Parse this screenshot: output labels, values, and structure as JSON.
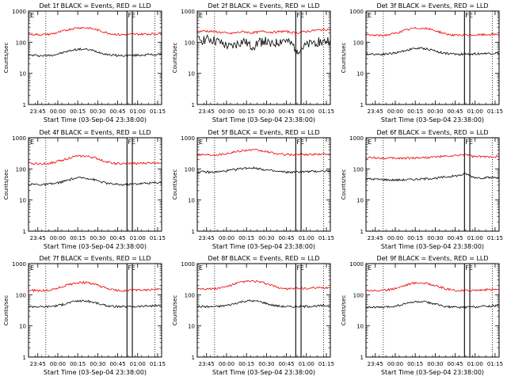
{
  "colors": {
    "events": "#000000",
    "lld": "#ee0000",
    "axes": "#000000",
    "background": "#ffffff"
  },
  "shared": {
    "ylabel": "Counts/sec",
    "xlabel": "Start Time (03-Sep-04 23:38:00)",
    "xticks": [
      "23:45",
      "00:00",
      "00:15",
      "00:30",
      "00:45",
      "01:00",
      "01:15"
    ],
    "yticks": [
      "1",
      "10",
      "100",
      "1000"
    ],
    "marker_E": "E",
    "marker_FE": "FE"
  },
  "chart_data": [
    {
      "type": "line",
      "title": "Det 1f BLACK = Events, RED = LLD",
      "yscale": "log",
      "ylim": [
        1,
        1000
      ],
      "xlim_minutes": [
        0,
        100
      ],
      "x_ticks_minutes": [
        7,
        22,
        37,
        52,
        67,
        82,
        97
      ],
      "dotted_lines_minutes": [
        13,
        95
      ],
      "solid_lines_minutes": [
        74,
        78
      ],
      "series": [
        {
          "name": "Events",
          "color": "black",
          "x": [
            0,
            5,
            10,
            15,
            20,
            25,
            30,
            35,
            40,
            45,
            50,
            55,
            60,
            65,
            70,
            75,
            80,
            85,
            90,
            95,
            100
          ],
          "values": [
            38,
            38,
            37,
            38,
            40,
            45,
            52,
            58,
            60,
            58,
            52,
            45,
            40,
            38,
            37,
            38,
            38,
            39,
            40,
            40,
            41
          ]
        },
        {
          "name": "LLD",
          "color": "red",
          "x": [
            0,
            5,
            10,
            15,
            20,
            25,
            30,
            35,
            40,
            45,
            50,
            55,
            60,
            65,
            70,
            75,
            80,
            85,
            90,
            95,
            100
          ],
          "values": [
            180,
            178,
            175,
            180,
            195,
            220,
            255,
            285,
            295,
            285,
            260,
            225,
            195,
            180,
            175,
            178,
            180,
            182,
            185,
            188,
            190
          ]
        }
      ]
    },
    {
      "type": "line",
      "title": "Det 2f BLACK = Events, RED = LLD",
      "yscale": "log",
      "ylim": [
        1,
        1000
      ],
      "xlim_minutes": [
        0,
        100
      ],
      "x_ticks_minutes": [
        7,
        22,
        37,
        52,
        67,
        82,
        97
      ],
      "dotted_lines_minutes": [
        13,
        95
      ],
      "solid_lines_minutes": [
        74,
        78
      ],
      "series": [
        {
          "name": "Events",
          "color": "black",
          "x": [
            0,
            5,
            10,
            15,
            20,
            25,
            30,
            35,
            40,
            45,
            50,
            55,
            60,
            65,
            70,
            75,
            80,
            85,
            90,
            95,
            100
          ],
          "values": [
            120,
            130,
            125,
            110,
            85,
            70,
            90,
            110,
            75,
            95,
            120,
            80,
            100,
            120,
            90,
            60,
            70,
            90,
            110,
            100,
            130
          ]
        },
        {
          "name": "LLD",
          "color": "red",
          "x": [
            0,
            5,
            10,
            15,
            20,
            25,
            30,
            35,
            40,
            45,
            50,
            55,
            60,
            65,
            70,
            75,
            80,
            85,
            90,
            95,
            100
          ],
          "values": [
            220,
            230,
            225,
            215,
            200,
            190,
            205,
            220,
            200,
            210,
            225,
            210,
            215,
            225,
            210,
            200,
            215,
            230,
            245,
            255,
            265
          ]
        }
      ]
    },
    {
      "type": "line",
      "title": "Det 3f BLACK = Events, RED = LLD",
      "yscale": "log",
      "ylim": [
        1,
        1000
      ],
      "xlim_minutes": [
        0,
        100
      ],
      "x_ticks_minutes": [
        7,
        22,
        37,
        52,
        67,
        82,
        97
      ],
      "dotted_lines_minutes": [
        13,
        95
      ],
      "solid_lines_minutes": [
        74,
        78
      ],
      "series": [
        {
          "name": "Events",
          "color": "black",
          "x": [
            0,
            5,
            10,
            15,
            20,
            25,
            30,
            35,
            40,
            45,
            50,
            55,
            60,
            65,
            70,
            75,
            80,
            85,
            90,
            95,
            100
          ],
          "values": [
            42,
            42,
            41,
            42,
            44,
            48,
            55,
            62,
            64,
            62,
            56,
            48,
            44,
            42,
            41,
            42,
            42,
            43,
            44,
            44,
            45
          ]
        },
        {
          "name": "LLD",
          "color": "red",
          "x": [
            0,
            5,
            10,
            15,
            20,
            25,
            30,
            35,
            40,
            45,
            50,
            55,
            60,
            65,
            70,
            75,
            80,
            85,
            90,
            95,
            100
          ],
          "values": [
            170,
            168,
            165,
            170,
            185,
            210,
            245,
            275,
            285,
            275,
            250,
            215,
            185,
            170,
            165,
            168,
            170,
            172,
            175,
            178,
            180
          ]
        }
      ]
    },
    {
      "type": "line",
      "title": "Det 4f BLACK = Events, RED = LLD",
      "yscale": "log",
      "ylim": [
        1,
        1000
      ],
      "xlim_minutes": [
        0,
        100
      ],
      "x_ticks_minutes": [
        7,
        22,
        37,
        52,
        67,
        82,
        97
      ],
      "dotted_lines_minutes": [
        13,
        95
      ],
      "solid_lines_minutes": [
        74,
        78
      ],
      "series": [
        {
          "name": "Events",
          "color": "black",
          "x": [
            0,
            5,
            10,
            15,
            20,
            25,
            30,
            35,
            40,
            45,
            50,
            55,
            60,
            65,
            70,
            75,
            80,
            85,
            90,
            95,
            100
          ],
          "values": [
            32,
            32,
            31,
            32,
            34,
            38,
            44,
            50,
            52,
            50,
            44,
            38,
            34,
            32,
            31,
            32,
            33,
            34,
            35,
            36,
            37
          ]
        },
        {
          "name": "LLD",
          "color": "red",
          "x": [
            0,
            5,
            10,
            15,
            20,
            25,
            30,
            35,
            40,
            45,
            50,
            55,
            60,
            65,
            70,
            75,
            80,
            85,
            90,
            95,
            100
          ],
          "values": [
            150,
            148,
            145,
            150,
            165,
            190,
            220,
            250,
            260,
            250,
            225,
            190,
            165,
            150,
            145,
            148,
            150,
            152,
            155,
            158,
            160
          ]
        }
      ]
    },
    {
      "type": "line",
      "title": "Det 5f BLACK = Events, RED = LLD",
      "yscale": "log",
      "ylim": [
        1,
        1000
      ],
      "xlim_minutes": [
        0,
        100
      ],
      "x_ticks_minutes": [
        7,
        22,
        37,
        52,
        67,
        82,
        97
      ],
      "dotted_lines_minutes": [
        13,
        95
      ],
      "solid_lines_minutes": [
        74,
        78
      ],
      "series": [
        {
          "name": "Events",
          "color": "black",
          "x": [
            0,
            5,
            10,
            15,
            20,
            25,
            30,
            35,
            40,
            45,
            50,
            55,
            60,
            65,
            70,
            75,
            80,
            85,
            90,
            95,
            100
          ],
          "values": [
            80,
            80,
            78,
            80,
            84,
            90,
            98,
            105,
            108,
            105,
            96,
            88,
            82,
            80,
            78,
            80,
            81,
            82,
            84,
            85,
            86
          ]
        },
        {
          "name": "LLD",
          "color": "red",
          "x": [
            0,
            5,
            10,
            15,
            20,
            25,
            30,
            35,
            40,
            45,
            50,
            55,
            60,
            65,
            70,
            75,
            80,
            85,
            90,
            95,
            100
          ],
          "values": [
            290,
            288,
            285,
            290,
            305,
            330,
            365,
            395,
            405,
            395,
            370,
            335,
            305,
            290,
            285,
            288,
            290,
            292,
            295,
            298,
            300
          ]
        }
      ]
    },
    {
      "type": "line",
      "title": "Det 6f BLACK = Events, RED = LLD",
      "yscale": "log",
      "ylim": [
        1,
        1000
      ],
      "xlim_minutes": [
        0,
        100
      ],
      "x_ticks_minutes": [
        7,
        22,
        37,
        52,
        67,
        82,
        97
      ],
      "dotted_lines_minutes": [
        13,
        95
      ],
      "solid_lines_minutes": [
        74,
        78
      ],
      "series": [
        {
          "name": "Events",
          "color": "black",
          "x": [
            0,
            5,
            10,
            15,
            20,
            25,
            30,
            35,
            40,
            45,
            50,
            55,
            60,
            65,
            70,
            75,
            80,
            85,
            90,
            95,
            100
          ],
          "values": [
            48,
            47,
            46,
            45,
            44,
            44,
            45,
            46,
            47,
            48,
            50,
            52,
            55,
            58,
            62,
            70,
            55,
            52,
            52,
            53,
            54
          ]
        },
        {
          "name": "LLD",
          "color": "red",
          "x": [
            0,
            5,
            10,
            15,
            20,
            25,
            30,
            35,
            40,
            45,
            50,
            55,
            60,
            65,
            70,
            75,
            80,
            85,
            90,
            95,
            100
          ],
          "values": [
            230,
            228,
            225,
            222,
            220,
            220,
            222,
            225,
            228,
            232,
            238,
            245,
            252,
            260,
            270,
            300,
            250,
            245,
            245,
            248,
            250
          ]
        }
      ]
    },
    {
      "type": "line",
      "title": "Det 7f BLACK = Events, RED = LLD",
      "yscale": "log",
      "ylim": [
        1,
        1000
      ],
      "xlim_minutes": [
        0,
        100
      ],
      "x_ticks_minutes": [
        7,
        22,
        37,
        52,
        67,
        82,
        97
      ],
      "dotted_lines_minutes": [
        13,
        95
      ],
      "solid_lines_minutes": [
        74,
        78
      ],
      "series": [
        {
          "name": "Events",
          "color": "black",
          "x": [
            0,
            5,
            10,
            15,
            20,
            25,
            30,
            35,
            40,
            45,
            50,
            55,
            60,
            65,
            70,
            75,
            80,
            85,
            90,
            95,
            100
          ],
          "values": [
            42,
            42,
            41,
            42,
            44,
            48,
            55,
            62,
            64,
            62,
            56,
            48,
            44,
            42,
            41,
            42,
            42,
            43,
            44,
            44,
            45
          ]
        },
        {
          "name": "LLD",
          "color": "red",
          "x": [
            0,
            5,
            10,
            15,
            20,
            25,
            30,
            35,
            40,
            45,
            50,
            55,
            60,
            65,
            70,
            75,
            80,
            85,
            90,
            95,
            100
          ],
          "values": [
            140,
            138,
            135,
            140,
            155,
            180,
            210,
            240,
            250,
            240,
            215,
            180,
            155,
            140,
            135,
            138,
            140,
            142,
            145,
            148,
            150
          ]
        }
      ]
    },
    {
      "type": "line",
      "title": "Det 8f BLACK = Events, RED = LLD",
      "yscale": "log",
      "ylim": [
        1,
        1000
      ],
      "xlim_minutes": [
        0,
        100
      ],
      "x_ticks_minutes": [
        7,
        22,
        37,
        52,
        67,
        82,
        97
      ],
      "dotted_lines_minutes": [
        13,
        95
      ],
      "solid_lines_minutes": [
        74,
        78
      ],
      "series": [
        {
          "name": "Events",
          "color": "black",
          "x": [
            0,
            5,
            10,
            15,
            20,
            25,
            30,
            35,
            40,
            45,
            50,
            55,
            60,
            65,
            70,
            75,
            80,
            85,
            90,
            95,
            100
          ],
          "values": [
            42,
            42,
            41,
            42,
            44,
            48,
            55,
            62,
            64,
            62,
            56,
            48,
            44,
            42,
            41,
            42,
            42,
            43,
            44,
            44,
            45
          ]
        },
        {
          "name": "LLD",
          "color": "red",
          "x": [
            0,
            5,
            10,
            15,
            20,
            25,
            30,
            35,
            40,
            45,
            50,
            55,
            60,
            65,
            70,
            75,
            80,
            85,
            90,
            95,
            100
          ],
          "values": [
            160,
            158,
            155,
            160,
            175,
            200,
            235,
            265,
            275,
            265,
            240,
            205,
            175,
            160,
            155,
            158,
            160,
            162,
            165,
            168,
            170
          ]
        }
      ]
    },
    {
      "type": "line",
      "title": "Det 9f BLACK = Events, RED = LLD",
      "yscale": "log",
      "ylim": [
        1,
        1000
      ],
      "xlim_minutes": [
        0,
        100
      ],
      "x_ticks_minutes": [
        7,
        22,
        37,
        52,
        67,
        82,
        97
      ],
      "dotted_lines_minutes": [
        13,
        95
      ],
      "solid_lines_minutes": [
        74,
        78
      ],
      "series": [
        {
          "name": "Events",
          "color": "black",
          "x": [
            0,
            5,
            10,
            15,
            20,
            25,
            30,
            35,
            40,
            45,
            50,
            55,
            60,
            65,
            70,
            75,
            80,
            85,
            90,
            95,
            100
          ],
          "values": [
            40,
            40,
            39,
            40,
            42,
            46,
            52,
            58,
            60,
            58,
            53,
            46,
            42,
            40,
            39,
            40,
            41,
            42,
            43,
            44,
            45
          ]
        },
        {
          "name": "LLD",
          "color": "red",
          "x": [
            0,
            5,
            10,
            15,
            20,
            25,
            30,
            35,
            40,
            45,
            50,
            55,
            60,
            65,
            70,
            75,
            80,
            85,
            90,
            95,
            100
          ],
          "values": [
            140,
            138,
            135,
            140,
            155,
            175,
            205,
            235,
            245,
            235,
            210,
            178,
            155,
            140,
            135,
            138,
            140,
            142,
            145,
            148,
            150
          ]
        }
      ]
    }
  ]
}
